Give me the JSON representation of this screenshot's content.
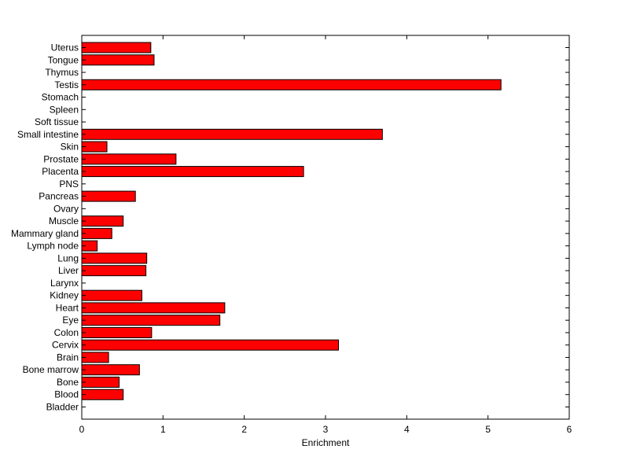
{
  "chart_data": {
    "type": "bar",
    "orientation": "horizontal",
    "title": "",
    "xlabel": "Enrichment",
    "ylabel": "",
    "xlim": [
      0,
      6
    ],
    "xticks": [
      0,
      1,
      2,
      3,
      4,
      5,
      6
    ],
    "grid": false,
    "bar_color": "#ff0000",
    "bar_edge_color": "#000000",
    "categories": [
      "Uterus",
      "Tongue",
      "Thymus",
      "Testis",
      "Stomach",
      "Spleen",
      "Soft tissue",
      "Small intestine",
      "Skin",
      "Prostate",
      "Placenta",
      "PNS",
      "Pancreas",
      "Ovary",
      "Muscle",
      "Mammary gland",
      "Lymph node",
      "Lung",
      "Liver",
      "Larynx",
      "Kidney",
      "Heart",
      "Eye",
      "Colon",
      "Cervix",
      "Brain",
      "Bone marrow",
      "Bone",
      "Blood",
      "Bladder"
    ],
    "values": [
      0.85,
      0.89,
      0,
      5.16,
      0,
      0,
      0,
      3.7,
      0.31,
      1.16,
      2.73,
      0,
      0.66,
      0,
      0.51,
      0.37,
      0.19,
      0.8,
      0.79,
      0,
      0.74,
      1.76,
      1.7,
      0.86,
      3.16,
      0.33,
      0.71,
      0.46,
      0.51,
      0
    ]
  }
}
